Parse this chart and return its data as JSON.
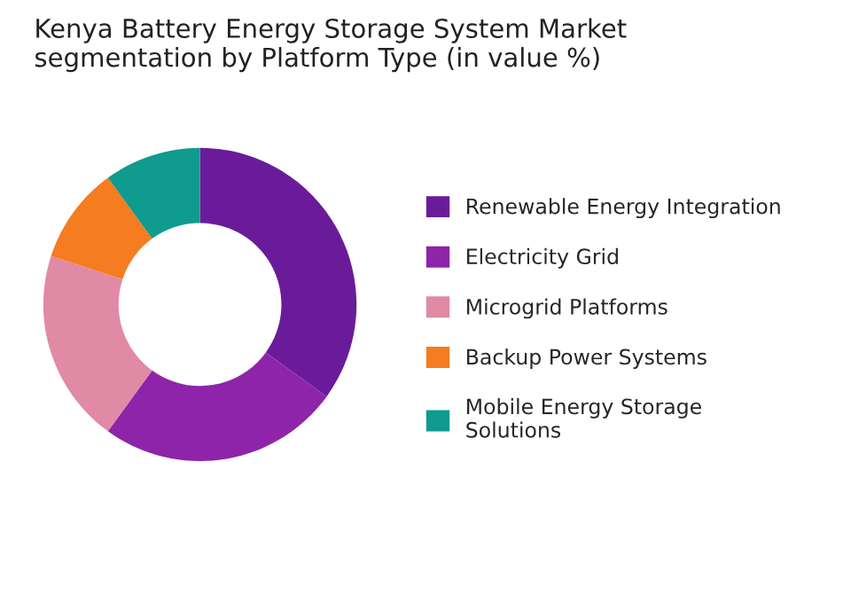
{
  "chart_data": {
    "type": "donut",
    "title": "Kenya Battery Energy Storage System Market\nsegmentation by Platform Type (in value %)",
    "categories": [
      "Renewable Energy Integration",
      "Electricity Grid",
      "Microgrid Platforms",
      "Backup Power Systems",
      "Mobile Energy Storage\nSolutions"
    ],
    "values": [
      35,
      25,
      20,
      10,
      10
    ],
    "colors": [
      "#6a1b9a",
      "#8e24aa",
      "#e08aa5",
      "#f57c20",
      "#0f9b8e"
    ],
    "legend": "right"
  }
}
